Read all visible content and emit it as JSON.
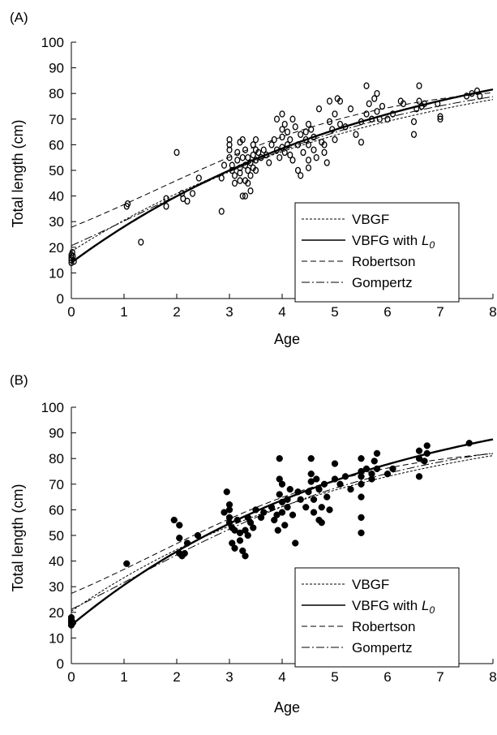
{
  "chart_data": [
    {
      "type": "scatter",
      "panel_label": "(A)",
      "xlabel": "Age",
      "ylabel": "Total length (cm)",
      "xlim": [
        0,
        8
      ],
      "ylim": [
        0,
        100
      ],
      "x_ticks": [
        "0",
        "1",
        "2",
        "3",
        "4",
        "5",
        "6",
        "7",
        "8"
      ],
      "y_ticks": [
        "0",
        "10",
        "20",
        "30",
        "40",
        "50",
        "60",
        "70",
        "80",
        "90",
        "100"
      ],
      "marker": "open",
      "grid": false,
      "legend_position": "lower-right",
      "legend": [
        {
          "label": "VBGF",
          "style": "dashed-fine"
        },
        {
          "label": "VBFG with ",
          "label_italic": "L",
          "label_sub": "0",
          "style": "solid"
        },
        {
          "label": "Robertson",
          "style": "dashed"
        },
        {
          "label": "Gompertz",
          "style": "dashdot"
        }
      ],
      "points": [
        [
          0,
          14
        ],
        [
          0,
          15
        ],
        [
          0,
          16
        ],
        [
          0,
          17
        ],
        [
          0.02,
          18
        ],
        [
          0.05,
          14.5
        ],
        [
          0.03,
          16.5
        ],
        [
          1.05,
          36
        ],
        [
          1.07,
          37
        ],
        [
          1.32,
          22
        ],
        [
          1.8,
          39
        ],
        [
          1.8,
          36
        ],
        [
          2,
          57
        ],
        [
          2.1,
          41
        ],
        [
          2.12,
          39
        ],
        [
          2.2,
          38
        ],
        [
          2.3,
          41
        ],
        [
          2.42,
          47
        ],
        [
          2.85,
          34
        ],
        [
          2.85,
          47
        ],
        [
          2.9,
          52
        ],
        [
          3.0,
          62
        ],
        [
          3.0,
          60
        ],
        [
          3.0,
          58
        ],
        [
          3.0,
          55
        ],
        [
          3.05,
          52
        ],
        [
          3.05,
          50
        ],
        [
          3.1,
          48
        ],
        [
          3.1,
          45
        ],
        [
          3.15,
          57
        ],
        [
          3.15,
          54
        ],
        [
          3.2,
          61
        ],
        [
          3.2,
          51
        ],
        [
          3.2,
          49
        ],
        [
          3.2,
          46
        ],
        [
          3.25,
          62
        ],
        [
          3.25,
          55
        ],
        [
          3.25,
          40
        ],
        [
          3.3,
          58
        ],
        [
          3.3,
          52
        ],
        [
          3.3,
          46
        ],
        [
          3.3,
          40
        ],
        [
          3.35,
          55
        ],
        [
          3.35,
          50
        ],
        [
          3.35,
          45
        ],
        [
          3.4,
          53
        ],
        [
          3.4,
          48
        ],
        [
          3.4,
          42
        ],
        [
          3.45,
          60
        ],
        [
          3.45,
          56
        ],
        [
          3.45,
          51
        ],
        [
          3.5,
          62
        ],
        [
          3.5,
          58
        ],
        [
          3.5,
          54
        ],
        [
          3.5,
          50
        ],
        [
          3.55,
          57
        ],
        [
          3.6,
          55
        ],
        [
          3.65,
          58
        ],
        [
          3.7,
          56
        ],
        [
          3.75,
          53
        ],
        [
          3.8,
          60
        ],
        [
          3.85,
          62
        ],
        [
          3.9,
          70
        ],
        [
          3.9,
          58
        ],
        [
          3.95,
          55
        ],
        [
          4.0,
          72
        ],
        [
          4.0,
          66
        ],
        [
          4.0,
          63
        ],
        [
          4.0,
          59
        ],
        [
          4.05,
          68
        ],
        [
          4.05,
          57
        ],
        [
          4.1,
          65
        ],
        [
          4.1,
          60
        ],
        [
          4.15,
          62
        ],
        [
          4.15,
          56
        ],
        [
          4.2,
          70
        ],
        [
          4.2,
          54
        ],
        [
          4.25,
          67
        ],
        [
          4.3,
          60
        ],
        [
          4.3,
          50
        ],
        [
          4.35,
          64
        ],
        [
          4.35,
          48
        ],
        [
          4.4,
          57
        ],
        [
          4.45,
          65
        ],
        [
          4.45,
          62
        ],
        [
          4.5,
          68
        ],
        [
          4.5,
          60
        ],
        [
          4.5,
          54
        ],
        [
          4.5,
          51
        ],
        [
          4.55,
          66
        ],
        [
          4.6,
          63
        ],
        [
          4.6,
          58
        ],
        [
          4.65,
          55
        ],
        [
          4.7,
          74
        ],
        [
          4.75,
          61
        ],
        [
          4.8,
          60
        ],
        [
          4.8,
          57
        ],
        [
          4.85,
          53
        ],
        [
          4.9,
          77
        ],
        [
          4.9,
          69
        ],
        [
          4.95,
          66
        ],
        [
          5.0,
          72
        ],
        [
          5.0,
          62
        ],
        [
          5.05,
          78
        ],
        [
          5.1,
          77
        ],
        [
          5.1,
          68
        ],
        [
          5.2,
          67
        ],
        [
          5.3,
          74
        ],
        [
          5.4,
          64
        ],
        [
          5.5,
          61
        ],
        [
          5.5,
          69
        ],
        [
          5.6,
          72
        ],
        [
          5.6,
          83
        ],
        [
          5.65,
          76
        ],
        [
          5.7,
          70
        ],
        [
          5.75,
          78
        ],
        [
          5.8,
          80
        ],
        [
          5.8,
          73
        ],
        [
          5.85,
          70
        ],
        [
          5.9,
          75
        ],
        [
          6.0,
          70
        ],
        [
          6.1,
          72
        ],
        [
          6.25,
          77
        ],
        [
          6.3,
          76
        ],
        [
          6.5,
          69
        ],
        [
          6.5,
          64
        ],
        [
          6.55,
          74
        ],
        [
          6.6,
          83
        ],
        [
          6.6,
          77
        ],
        [
          6.65,
          75
        ],
        [
          6.7,
          76
        ],
        [
          6.95,
          76
        ],
        [
          7.0,
          71
        ],
        [
          7.0,
          70
        ],
        [
          7.5,
          79
        ],
        [
          7.6,
          80
        ],
        [
          7.7,
          81
        ],
        [
          7.75,
          79
        ]
      ],
      "series_curves": [
        {
          "name": "VBGF",
          "style": "dashed-fine",
          "linf": 100,
          "k": 0.162,
          "t0": -1.25
        },
        {
          "name": "VBFG with L0",
          "style": "solid",
          "linf": 106.2,
          "k": 0.165,
          "l0": 14
        },
        {
          "name": "Robertson",
          "style": "dashed",
          "linf": 85,
          "k": 0.445,
          "ti": 1.62
        },
        {
          "name": "Gompertz",
          "style": "dashdot",
          "linf": 90,
          "k": 0.3,
          "ti": 1.29
        }
      ]
    },
    {
      "type": "scatter",
      "panel_label": "(B)",
      "xlabel": "Age",
      "ylabel": "Total length (cm)",
      "xlim": [
        0,
        8
      ],
      "ylim": [
        0,
        100
      ],
      "x_ticks": [
        "0",
        "1",
        "2",
        "3",
        "4",
        "5",
        "6",
        "7",
        "8"
      ],
      "y_ticks": [
        "0",
        "10",
        "20",
        "30",
        "40",
        "50",
        "60",
        "70",
        "80",
        "90",
        "100"
      ],
      "marker": "filled",
      "grid": false,
      "legend_position": "lower-right",
      "legend": [
        {
          "label": "VBGF",
          "style": "dashed-fine"
        },
        {
          "label": "VBFG with ",
          "label_italic": "L",
          "label_sub": "0",
          "style": "solid"
        },
        {
          "label": "Robertson",
          "style": "dashed"
        },
        {
          "label": "Gompertz",
          "style": "dashdot"
        }
      ],
      "points": [
        [
          0,
          15
        ],
        [
          0,
          16
        ],
        [
          0,
          17
        ],
        [
          0,
          18
        ],
        [
          0.03,
          16
        ],
        [
          1.05,
          39
        ],
        [
          1.95,
          56
        ],
        [
          2.05,
          54
        ],
        [
          2.05,
          49
        ],
        [
          2.05,
          43
        ],
        [
          2.1,
          42
        ],
        [
          2.15,
          43
        ],
        [
          2.2,
          47
        ],
        [
          2.4,
          50
        ],
        [
          2.9,
          59
        ],
        [
          2.95,
          67
        ],
        [
          3.0,
          62
        ],
        [
          3.0,
          60
        ],
        [
          3.0,
          57
        ],
        [
          3.0,
          55
        ],
        [
          3.05,
          53
        ],
        [
          3.05,
          47
        ],
        [
          3.1,
          52
        ],
        [
          3.1,
          45
        ],
        [
          3.15,
          56
        ],
        [
          3.2,
          51
        ],
        [
          3.2,
          48
        ],
        [
          3.25,
          44
        ],
        [
          3.3,
          52
        ],
        [
          3.3,
          42
        ],
        [
          3.35,
          57
        ],
        [
          3.35,
          50
        ],
        [
          3.4,
          55
        ],
        [
          3.45,
          53
        ],
        [
          3.5,
          60
        ],
        [
          3.6,
          57
        ],
        [
          3.65,
          59
        ],
        [
          3.8,
          61
        ],
        [
          3.85,
          56
        ],
        [
          3.9,
          58
        ],
        [
          3.92,
          52
        ],
        [
          3.95,
          80
        ],
        [
          3.95,
          72
        ],
        [
          3.95,
          66
        ],
        [
          4.0,
          70
        ],
        [
          4.0,
          63
        ],
        [
          4.0,
          59
        ],
        [
          4.05,
          54
        ],
        [
          4.1,
          64
        ],
        [
          4.1,
          61
        ],
        [
          4.15,
          68
        ],
        [
          4.2,
          58
        ],
        [
          4.25,
          47
        ],
        [
          4.3,
          67
        ],
        [
          4.35,
          64
        ],
        [
          4.45,
          61
        ],
        [
          4.5,
          67
        ],
        [
          4.55,
          80
        ],
        [
          4.55,
          74
        ],
        [
          4.55,
          71
        ],
        [
          4.6,
          64
        ],
        [
          4.6,
          59
        ],
        [
          4.65,
          72
        ],
        [
          4.7,
          68
        ],
        [
          4.7,
          56
        ],
        [
          4.75,
          61
        ],
        [
          4.75,
          55
        ],
        [
          4.8,
          70
        ],
        [
          4.85,
          65
        ],
        [
          4.9,
          60
        ],
        [
          5.0,
          78
        ],
        [
          5.0,
          72
        ],
        [
          5.1,
          70
        ],
        [
          5.2,
          73
        ],
        [
          5.3,
          68
        ],
        [
          5.5,
          80
        ],
        [
          5.5,
          75
        ],
        [
          5.5,
          73
        ],
        [
          5.5,
          70
        ],
        [
          5.5,
          65
        ],
        [
          5.5,
          57
        ],
        [
          5.5,
          51
        ],
        [
          5.6,
          76
        ],
        [
          5.7,
          74
        ],
        [
          5.7,
          72
        ],
        [
          5.75,
          79
        ],
        [
          5.8,
          82
        ],
        [
          5.8,
          76
        ],
        [
          6.0,
          74
        ],
        [
          6.1,
          76
        ],
        [
          6.6,
          80
        ],
        [
          6.6,
          83
        ],
        [
          6.6,
          73
        ],
        [
          6.7,
          79
        ],
        [
          6.75,
          85
        ],
        [
          6.75,
          82
        ],
        [
          7.55,
          86
        ]
      ],
      "series_curves": [
        {
          "name": "VBGF",
          "style": "dashed-fine",
          "linf": 100,
          "k": 0.18,
          "t0": -1.27
        },
        {
          "name": "VBFG with L0",
          "style": "solid",
          "linf": 110,
          "k": 0.18,
          "l0": 15
        },
        {
          "name": "Robertson",
          "style": "dashed",
          "linf": 86,
          "k": 0.47,
          "ti": 1.62
        },
        {
          "name": "Gompertz",
          "style": "dashdot",
          "linf": 92,
          "k": 0.32,
          "ti": 1.2
        }
      ]
    }
  ]
}
